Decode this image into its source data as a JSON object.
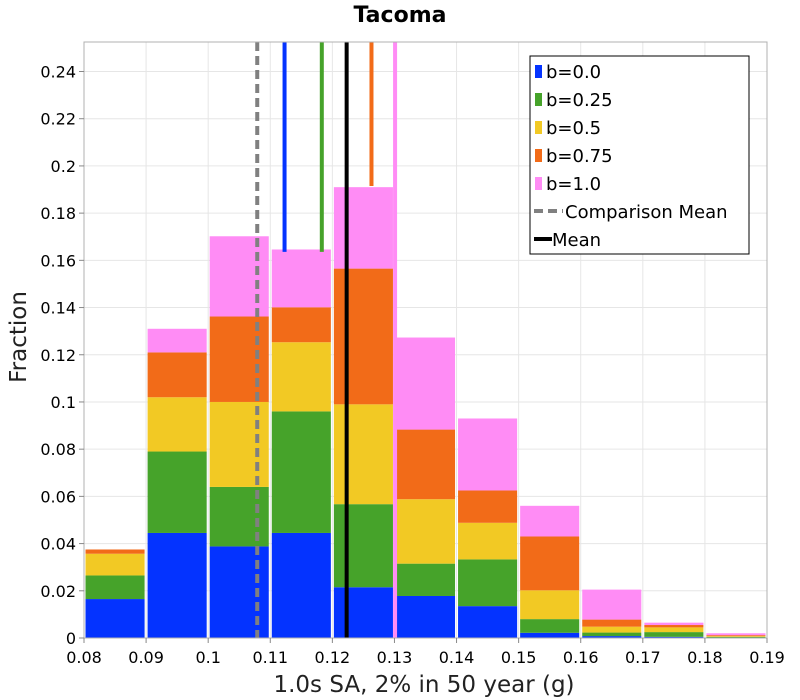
{
  "chart_data": {
    "type": "bar",
    "stacked": true,
    "title": "Tacoma",
    "xlabel": "1.0s SA, 2% in 50 year (g)",
    "ylabel": "Fraction",
    "xlim": [
      0.08,
      0.19
    ],
    "ylim": [
      0,
      0.2525
    ],
    "x_ticks": [
      "0.08",
      "0.09",
      "0.1",
      "0.11",
      "0.12",
      "0.13",
      "0.14",
      "0.15",
      "0.16",
      "0.17",
      "0.18",
      "0.19"
    ],
    "x_tick_values": [
      0.08,
      0.09,
      0.1,
      0.11,
      0.12,
      0.13,
      0.14,
      0.15,
      0.16,
      0.17,
      0.18,
      0.19
    ],
    "y_ticks": [
      "0",
      "0.02",
      "0.04",
      "0.06",
      "0.08",
      "0.1",
      "0.12",
      "0.14",
      "0.16",
      "0.18",
      "0.2",
      "0.22",
      "0.24"
    ],
    "y_tick_values": [
      0,
      0.02,
      0.04,
      0.06,
      0.08,
      0.1,
      0.12,
      0.14,
      0.16,
      0.18,
      0.2,
      0.22,
      0.24
    ],
    "bins": [
      [
        0.08,
        0.09
      ],
      [
        0.09,
        0.1
      ],
      [
        0.1,
        0.11
      ],
      [
        0.11,
        0.12
      ],
      [
        0.12,
        0.13
      ],
      [
        0.13,
        0.14
      ],
      [
        0.14,
        0.15
      ],
      [
        0.15,
        0.16
      ],
      [
        0.16,
        0.17
      ],
      [
        0.17,
        0.18
      ],
      [
        0.18,
        0.19
      ]
    ],
    "series": [
      {
        "name": "b=0.0",
        "color": "#0433ff",
        "values": [
          0.0165,
          0.0445,
          0.0388,
          0.0445,
          0.0215,
          0.0178,
          0.0135,
          0.0022,
          0.0008,
          0.0005,
          0.0002
        ]
      },
      {
        "name": "b=0.25",
        "color": "#46a32a",
        "values": [
          0.01,
          0.0345,
          0.0252,
          0.0515,
          0.0352,
          0.0137,
          0.0198,
          0.0058,
          0.0015,
          0.002,
          0.0003
        ]
      },
      {
        "name": "b=0.5",
        "color": "#f2c924",
        "values": [
          0.0092,
          0.023,
          0.036,
          0.0293,
          0.0423,
          0.0273,
          0.0155,
          0.0122,
          0.0025,
          0.002,
          0.0003
        ]
      },
      {
        "name": "b=0.75",
        "color": "#f26b18",
        "values": [
          0.0018,
          0.019,
          0.0362,
          0.0148,
          0.0575,
          0.0295,
          0.0137,
          0.0228,
          0.003,
          0.001,
          0.0004
        ]
      },
      {
        "name": "b=1.0",
        "color": "#ff8cf5",
        "values": [
          0.0,
          0.01,
          0.034,
          0.0245,
          0.0345,
          0.039,
          0.0305,
          0.013,
          0.0127,
          0.001,
          0.0008
        ]
      }
    ],
    "vertical_lines": [
      {
        "name": "b=0.0 mean",
        "x": 0.1123,
        "color": "#0433ff",
        "style": "solid",
        "top": 0.2525,
        "bottom": 0.1636
      },
      {
        "name": "b=0.25 mean",
        "x": 0.1183,
        "color": "#46a32a",
        "style": "solid",
        "top": 0.2525,
        "bottom": 0.1636
      },
      {
        "name": "b=0.75 mean",
        "x": 0.1263,
        "color": "#f26b18",
        "style": "solid",
        "top": 0.2525,
        "bottom": 0.1915
      },
      {
        "name": "b=1.0 mean",
        "x": 0.1301,
        "color": "#ff8cf5",
        "style": "solid",
        "top": 0.2525,
        "bottom": 0.0
      },
      {
        "name": "Comparison Mean",
        "x": 0.1079,
        "color": "#808080",
        "style": "dashed",
        "top": 0.2525,
        "bottom": 0.0
      },
      {
        "name": "Mean",
        "x": 0.1223,
        "color": "#000000",
        "style": "solid",
        "top": 0.2525,
        "bottom": 0.0
      }
    ],
    "legend": {
      "position": "top-right",
      "entries": [
        {
          "label": "b=0.0",
          "color": "#0433ff",
          "kind": "box"
        },
        {
          "label": "b=0.25",
          "color": "#46a32a",
          "kind": "box"
        },
        {
          "label": "b=0.5",
          "color": "#f2c924",
          "kind": "box"
        },
        {
          "label": "b=0.75",
          "color": "#f26b18",
          "kind": "box"
        },
        {
          "label": "b=1.0",
          "color": "#ff8cf5",
          "kind": "box"
        },
        {
          "label": "Comparison Mean",
          "color": "#808080",
          "kind": "dashed-line"
        },
        {
          "label": "Mean",
          "color": "#000000",
          "kind": "line"
        }
      ]
    },
    "grid": true
  }
}
